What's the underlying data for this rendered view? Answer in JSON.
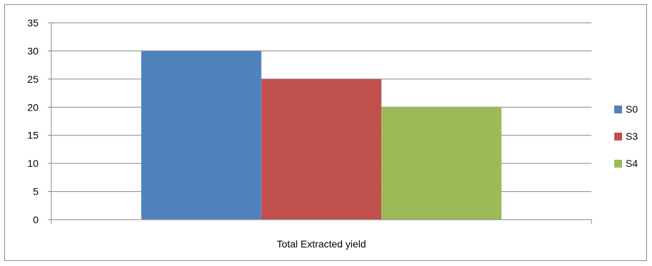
{
  "chart_data": {
    "type": "bar",
    "categories": [
      "Total Extracted yield"
    ],
    "series": [
      {
        "name": "S0",
        "values": [
          30
        ],
        "color": "#4F81BD"
      },
      {
        "name": "S3",
        "values": [
          25
        ],
        "color": "#C0504D"
      },
      {
        "name": "S4",
        "values": [
          20
        ],
        "color": "#9BBB59"
      }
    ],
    "title": "",
    "xlabel": "",
    "ylabel": "",
    "ylim": [
      0,
      35
    ],
    "yticks": [
      0,
      5,
      10,
      15,
      20,
      25,
      30,
      35
    ],
    "grid": true,
    "legend_position": "right"
  }
}
